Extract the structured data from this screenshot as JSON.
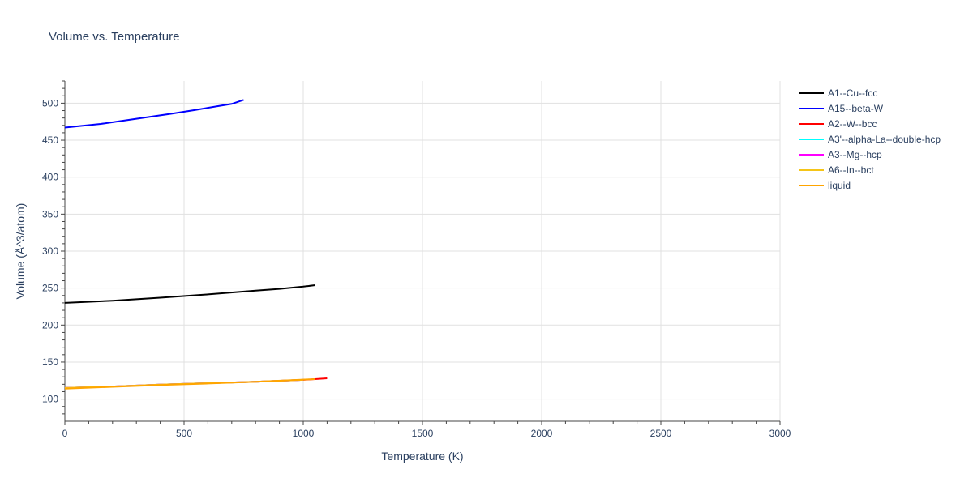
{
  "chart_data": {
    "type": "line",
    "title": "Volume vs. Temperature",
    "xlabel": "Temperature (K)",
    "ylabel": "Volume (Å^3/atom)",
    "xlim": [
      0,
      3000
    ],
    "ylim": [
      70,
      530
    ],
    "x_ticks": [
      0,
      500,
      1000,
      1500,
      2000,
      2500,
      3000
    ],
    "y_ticks": [
      100,
      150,
      200,
      250,
      300,
      350,
      400,
      450,
      500
    ],
    "grid": true,
    "legend_position": "top-right",
    "series": [
      {
        "name": "A1--Cu--fcc",
        "color": "#000000",
        "points": [
          [
            0,
            230
          ],
          [
            200,
            233
          ],
          [
            400,
            237
          ],
          [
            600,
            241.5
          ],
          [
            800,
            246.5
          ],
          [
            900,
            249
          ],
          [
            1000,
            252
          ],
          [
            1050,
            254
          ]
        ]
      },
      {
        "name": "A15--beta-W",
        "color": "#0000ff",
        "points": [
          [
            0,
            467
          ],
          [
            150,
            472
          ],
          [
            300,
            479
          ],
          [
            450,
            486
          ],
          [
            550,
            491
          ],
          [
            650,
            496.5
          ],
          [
            700,
            499
          ],
          [
            750,
            504.5
          ]
        ]
      },
      {
        "name": "A2--W--bcc",
        "color": "#ff0000",
        "points": [
          [
            0,
            115
          ],
          [
            200,
            117
          ],
          [
            400,
            119.5
          ],
          [
            600,
            121.5
          ],
          [
            800,
            123.5
          ],
          [
            1000,
            126
          ],
          [
            1100,
            128
          ]
        ]
      },
      {
        "name": "A3'--alpha-La--double-hcp",
        "color": "#00ffff",
        "points": [
          [
            0,
            115
          ],
          [
            200,
            117
          ],
          [
            400,
            119.5
          ],
          [
            600,
            121.5
          ],
          [
            800,
            123.5
          ],
          [
            1000,
            126
          ]
        ]
      },
      {
        "name": "A3--Mg--hcp",
        "color": "#ff00ff",
        "points": [
          [
            0,
            115
          ],
          [
            200,
            117
          ],
          [
            400,
            119.5
          ],
          [
            600,
            121.5
          ],
          [
            800,
            123.5
          ],
          [
            1000,
            126
          ]
        ]
      },
      {
        "name": "A6--In--bct",
        "color": "#f5c518",
        "points": [
          [
            0,
            115
          ],
          [
            200,
            117
          ],
          [
            400,
            119.5
          ],
          [
            600,
            121.5
          ],
          [
            800,
            123.5
          ],
          [
            1000,
            126
          ]
        ]
      },
      {
        "name": "liquid",
        "color": "#ffa500",
        "points": [
          [
            0,
            114
          ],
          [
            200,
            116.5
          ],
          [
            400,
            119
          ],
          [
            600,
            121
          ],
          [
            800,
            123.5
          ],
          [
            1050,
            127
          ]
        ]
      }
    ]
  }
}
